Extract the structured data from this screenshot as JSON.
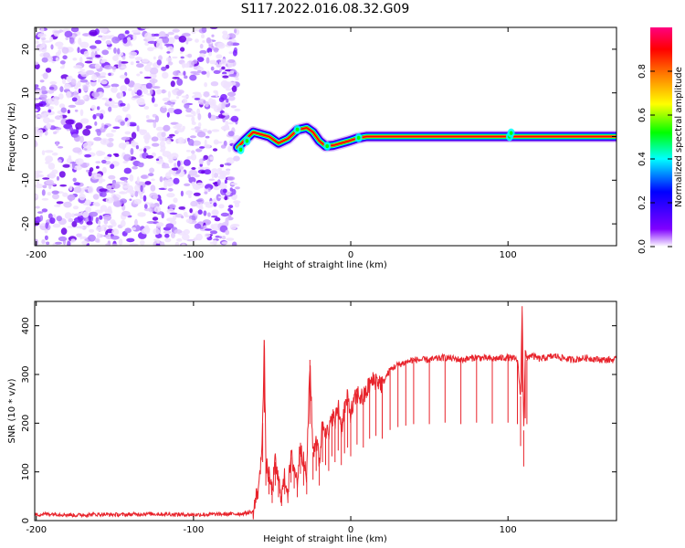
{
  "title": "S117.2022.016.08.32.G09",
  "colors": {
    "signal": "#e8232b",
    "noise": "#8a2be2",
    "axis": "#000000"
  },
  "chart_data": [
    {
      "type": "heatmap",
      "name": "spectrogram",
      "xlabel": "Height of straight line (km)",
      "ylabel": "Frequency (Hz)",
      "xlim": [
        -201,
        169
      ],
      "ylim": [
        -25,
        25
      ],
      "xticks": [
        -200,
        -100,
        0,
        100
      ],
      "yticks": [
        -20,
        -10,
        0,
        10,
        20
      ],
      "noise_region_x": [
        -201,
        -72
      ],
      "track": [
        {
          "x": -72,
          "y": -2.5
        },
        {
          "x": -68,
          "y": -1
        },
        {
          "x": -62,
          "y": 1
        },
        {
          "x": -57,
          "y": 0.5
        },
        {
          "x": -52,
          "y": 0
        },
        {
          "x": -46,
          "y": -1.5
        },
        {
          "x": -40,
          "y": -0.5
        },
        {
          "x": -34,
          "y": 1.5
        },
        {
          "x": -28,
          "y": 2
        },
        {
          "x": -24,
          "y": 1
        },
        {
          "x": -20,
          "y": -1
        },
        {
          "x": -16,
          "y": -2.2
        },
        {
          "x": -11,
          "y": -2
        },
        {
          "x": -6,
          "y": -1.5
        },
        {
          "x": -1,
          "y": -1
        },
        {
          "x": 4,
          "y": -0.4
        },
        {
          "x": 10,
          "y": 0
        },
        {
          "x": 100,
          "y": 0
        },
        {
          "x": 169,
          "y": 0
        }
      ],
      "colorbar": {
        "label": "Normalized spectral amplitude",
        "ticks": [
          "0.0",
          "0.2",
          "0.4",
          "0.6",
          "0.8"
        ],
        "ticks_values": [
          0.0,
          0.2,
          0.4,
          0.6,
          0.8
        ],
        "range": [
          0,
          1
        ],
        "colormap": [
          "#ffffff",
          "#8000ff",
          "#0000ff",
          "#00ffff",
          "#00ff00",
          "#ffff00",
          "#ff8000",
          "#ff0000",
          "#ff0080"
        ]
      }
    },
    {
      "type": "line",
      "name": "snr",
      "xlabel": "Height of straight line (km)",
      "ylabel": "SNR (10 * v/v)",
      "xlim": [
        -201,
        169
      ],
      "ylim": [
        0,
        450
      ],
      "xticks": [
        -200,
        -100,
        0,
        100
      ],
      "yticks": [
        0,
        100,
        200,
        300,
        400
      ],
      "series": [
        {
          "name": "SNR",
          "x": [
            -201,
            -190,
            -175,
            -160,
            -145,
            -130,
            -115,
            -100,
            -85,
            -70,
            -62,
            -58,
            -56,
            -55,
            -54,
            -52,
            -50,
            -48,
            -46,
            -44,
            -42,
            -40,
            -38,
            -36,
            -34,
            -32,
            -30,
            -28,
            -26,
            -24,
            -22,
            -20,
            -18,
            -16,
            -14,
            -12,
            -10,
            -8,
            -6,
            -4,
            -2,
            0,
            4,
            8,
            12,
            16,
            20,
            25,
            30,
            35,
            40,
            50,
            60,
            70,
            80,
            90,
            100,
            106,
            108,
            109,
            110,
            111,
            112,
            114,
            120,
            130,
            140,
            150,
            160,
            169
          ],
          "y": [
            12,
            14,
            11,
            13,
            12,
            14,
            13,
            12,
            13,
            14,
            18,
            80,
            200,
            370,
            120,
            90,
            60,
            120,
            80,
            50,
            90,
            60,
            130,
            110,
            80,
            160,
            120,
            90,
            330,
            140,
            170,
            120,
            200,
            190,
            170,
            220,
            200,
            240,
            190,
            230,
            250,
            220,
            260,
            250,
            280,
            290,
            280,
            310,
            320,
            325,
            330,
            330,
            335,
            330,
            335,
            332,
            335,
            330,
            255,
            440,
            185,
            350,
            330,
            340,
            332,
            338,
            330,
            334,
            330,
            330
          ]
        }
      ]
    }
  ]
}
